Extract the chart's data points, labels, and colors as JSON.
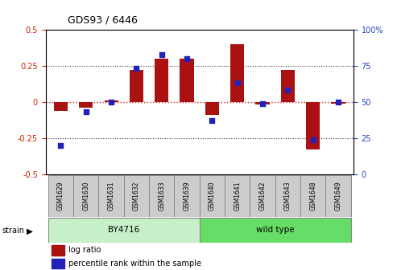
{
  "title": "GDS93 / 6446",
  "samples": [
    "GSM1629",
    "GSM1630",
    "GSM1631",
    "GSM1632",
    "GSM1633",
    "GSM1639",
    "GSM1640",
    "GSM1641",
    "GSM1642",
    "GSM1643",
    "GSM1648",
    "GSM1649"
  ],
  "log_ratio": [
    -0.06,
    -0.04,
    0.01,
    0.22,
    0.3,
    0.3,
    -0.09,
    0.4,
    -0.02,
    0.22,
    -0.33,
    -0.01
  ],
  "percentile_rank": [
    20,
    43,
    50,
    73,
    83,
    80,
    37,
    63,
    49,
    58,
    24,
    50
  ],
  "groups": [
    {
      "label": "BY4716",
      "color": "#c8f0c8",
      "start": 0,
      "end": 6
    },
    {
      "label": "wild type",
      "color": "#66dd66",
      "start": 6,
      "end": 12
    }
  ],
  "ylim_left": [
    -0.5,
    0.5
  ],
  "ylim_right": [
    0,
    100
  ],
  "bar_color": "#AA1111",
  "dot_color": "#2222BB",
  "hline_color": "#DD2222",
  "dotted_color": "#333333",
  "tick_label_color_left": "#CC2200",
  "tick_label_color_right": "#2244BB",
  "strain_label": "strain",
  "legend_bar_label": "log ratio",
  "legend_dot_label": "percentile rank within the sample",
  "sample_box_color": "#CCCCCC",
  "yticks_left": [
    -0.5,
    -0.25,
    0,
    0.25,
    0.5
  ],
  "ytick_labels_left": [
    "-0.5",
    "-0.25",
    "0",
    "0.25",
    "0.5"
  ],
  "yticks_right": [
    0,
    25,
    50,
    75,
    100
  ],
  "ytick_labels_right": [
    "0",
    "25",
    "50",
    "75",
    "100%"
  ]
}
